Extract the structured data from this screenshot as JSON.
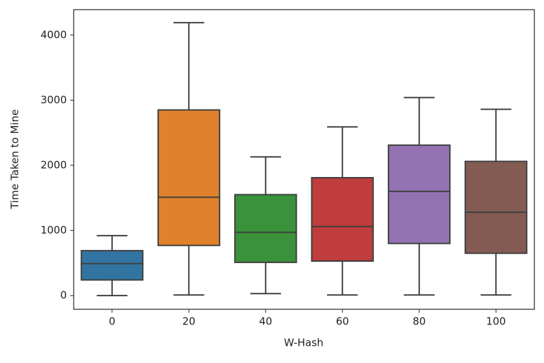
{
  "chart_data": {
    "type": "box",
    "x_label": "W-Hash",
    "y_label": "Time Taken to Mine",
    "categories": [
      "0",
      "20",
      "40",
      "60",
      "80",
      "100"
    ],
    "colors": [
      "#3274a1",
      "#e1812c",
      "#3a923a",
      "#c03d3e",
      "#9372b2",
      "#845b53"
    ],
    "values": [
      {
        "whisker_low": 0,
        "q1": 240,
        "median": 490,
        "q3": 690,
        "whisker_high": 920
      },
      {
        "whisker_low": 10,
        "q1": 770,
        "median": 1510,
        "q3": 2850,
        "whisker_high": 4190
      },
      {
        "whisker_low": 30,
        "q1": 510,
        "median": 970,
        "q3": 1550,
        "whisker_high": 2130
      },
      {
        "whisker_low": 10,
        "q1": 530,
        "median": 1060,
        "q3": 1810,
        "whisker_high": 2590
      },
      {
        "whisker_low": 10,
        "q1": 800,
        "median": 1600,
        "q3": 2310,
        "whisker_high": 3040
      },
      {
        "whisker_low": 10,
        "q1": 650,
        "median": 1280,
        "q3": 2060,
        "whisker_high": 2860
      }
    ],
    "ylim": [
      -210,
      4390
    ],
    "yticks": [
      0,
      1000,
      2000,
      3000,
      4000
    ],
    "grid": false
  }
}
